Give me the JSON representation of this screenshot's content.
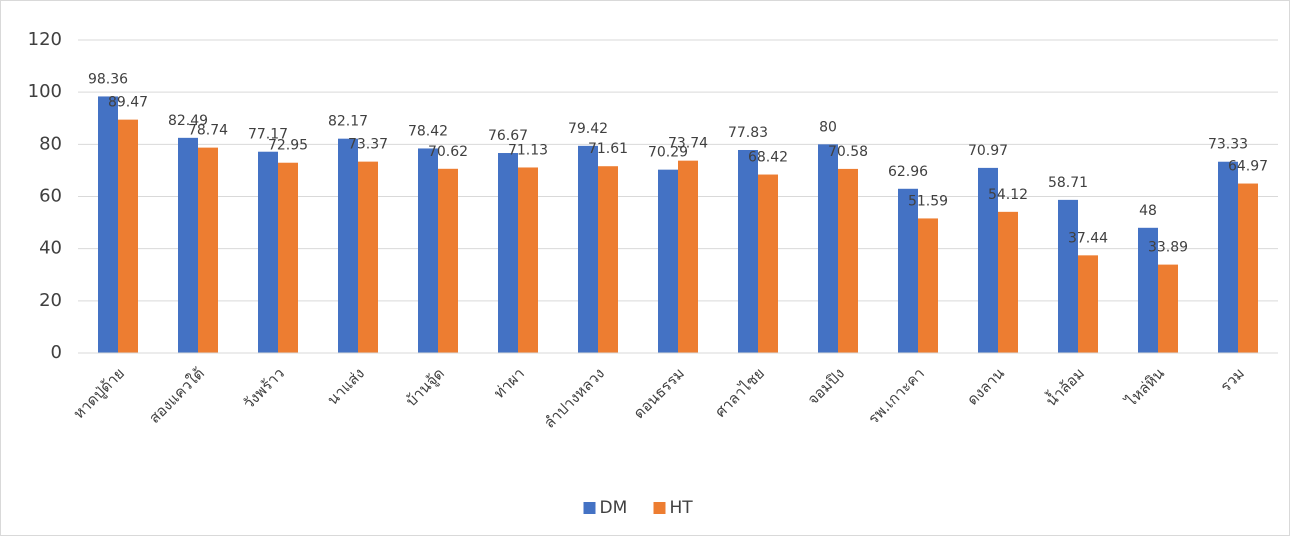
{
  "chart_data": {
    "type": "bar",
    "categories": [
      "หาดปู่ด้าย",
      "สองแควใต้",
      "วังพร้าว",
      "นาแส่ง",
      "บ้านจู้ด",
      "ท่าผา",
      "ลำปางหลวง",
      "ดอนธรรม",
      "ศาลาไชย",
      "จอมปิง",
      "รพ.เกาะคา",
      "ดงลาน",
      "น้ำล้อม",
      "ไหล่หิน",
      "รวม"
    ],
    "series": [
      {
        "name": "DM",
        "color": "#4472c4",
        "values": [
          98.36,
          82.49,
          77.17,
          82.17,
          78.42,
          76.67,
          79.42,
          70.29,
          77.83,
          80,
          62.96,
          70.97,
          58.71,
          48,
          73.33
        ]
      },
      {
        "name": "HT",
        "color": "#ed7d31",
        "values": [
          89.47,
          78.74,
          72.95,
          73.37,
          70.62,
          71.13,
          71.61,
          73.74,
          68.42,
          70.58,
          51.59,
          54.12,
          37.44,
          33.89,
          64.97
        ]
      }
    ],
    "ylim": [
      0,
      120
    ],
    "yticks": [
      0,
      20,
      40,
      60,
      80,
      100,
      120
    ],
    "grid": true,
    "legend": "bottom"
  }
}
